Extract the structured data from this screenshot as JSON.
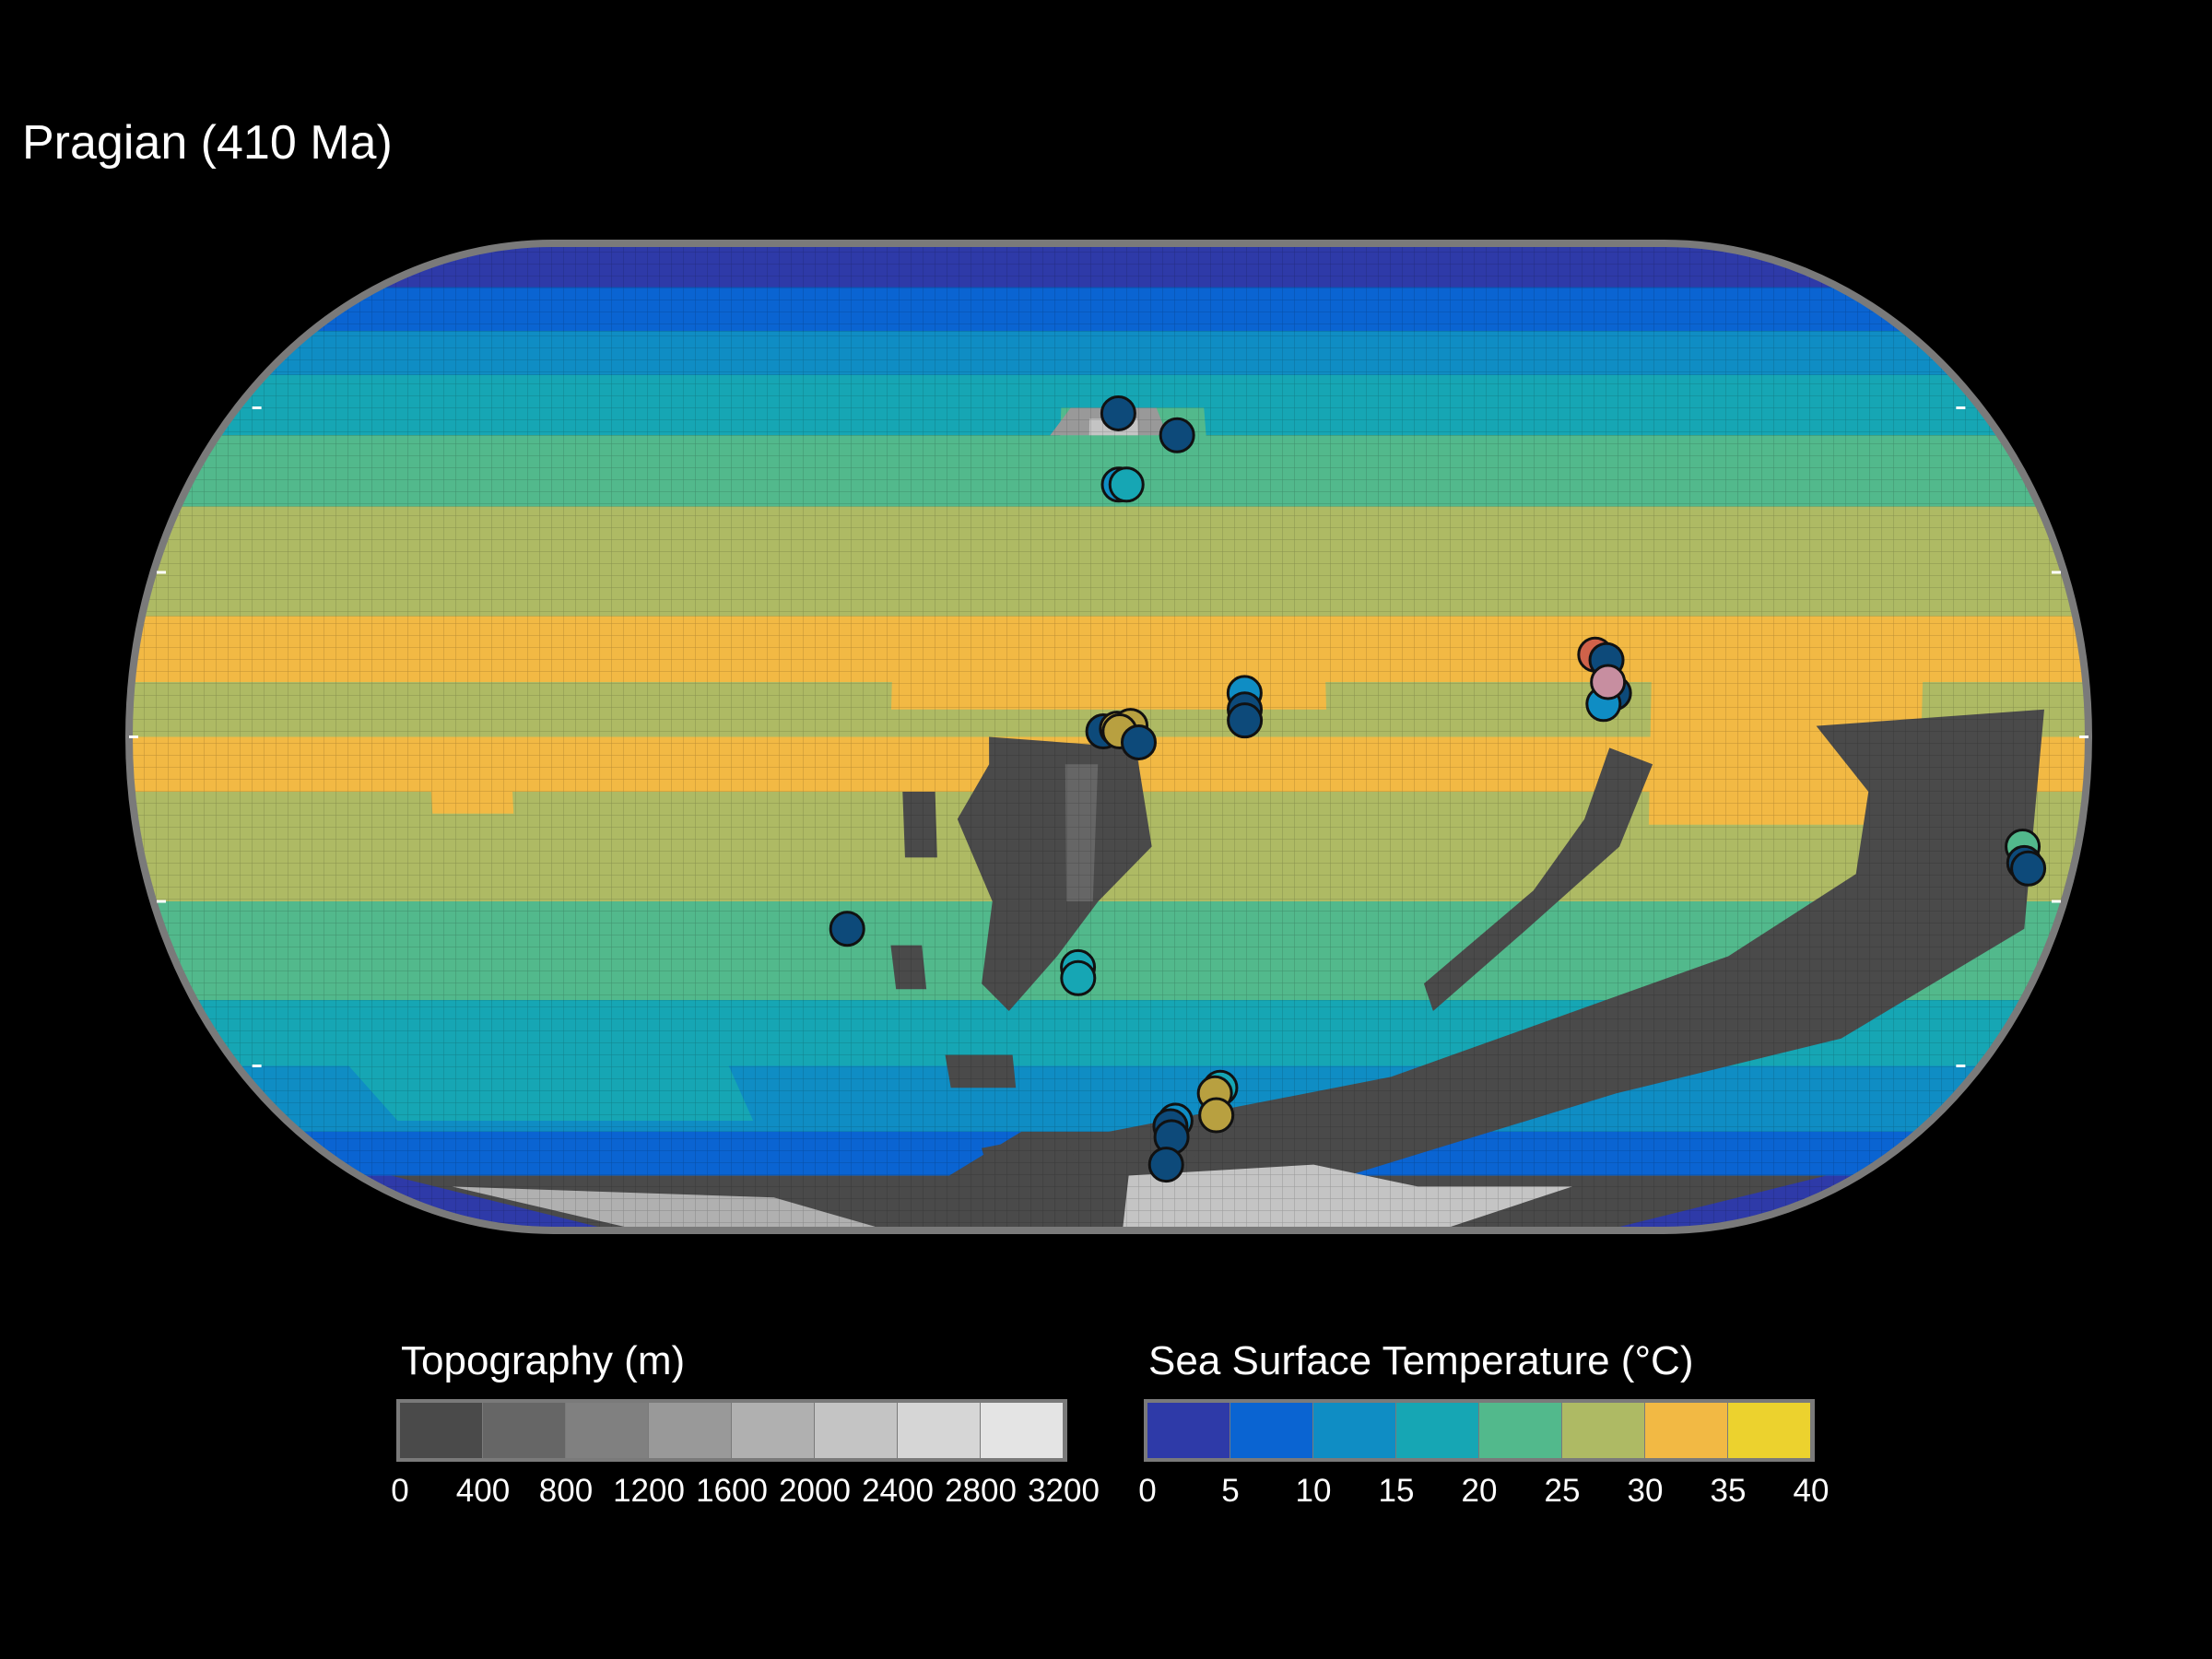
{
  "title": "Pragian (410 Ma)",
  "legend_topography": {
    "title": "Topography (m)",
    "ticks": [
      "0",
      "400",
      "800",
      "1200",
      "1600",
      "2000",
      "2400",
      "2800",
      "3200"
    ],
    "colors": [
      "#4a4a4a",
      "#666666",
      "#808080",
      "#999999",
      "#b0b0b0",
      "#c4c4c4",
      "#d6d6d6",
      "#e4e4e4"
    ]
  },
  "legend_sst": {
    "title": "Sea Surface Temperature (°C)",
    "ticks": [
      "0",
      "5",
      "10",
      "15",
      "20",
      "25",
      "30",
      "35",
      "40"
    ],
    "colors": [
      "#2e3aa8",
      "#0a64d2",
      "#0f8dc4",
      "#16a6b4",
      "#52b98c",
      "#aeba64",
      "#f2b944",
      "#ecd22e"
    ]
  },
  "sites": [
    {
      "lon": 2,
      "lat": 59,
      "temp": 10
    },
    {
      "lon": 2,
      "lat": 46,
      "temp": 14
    },
    {
      "lon": 3.5,
      "lat": 46,
      "temp": 18
    },
    {
      "lon": 14,
      "lat": 55,
      "temp": 8
    },
    {
      "lon": -1,
      "lat": 1,
      "temp": 8
    },
    {
      "lon": 1.5,
      "lat": 1.5,
      "temp": 28
    },
    {
      "lon": 4,
      "lat": 2,
      "temp": 30
    },
    {
      "lon": 2,
      "lat": 1,
      "temp": 27
    },
    {
      "lon": 5.5,
      "lat": -1,
      "temp": 9
    },
    {
      "lon": 25,
      "lat": 8,
      "temp": 12
    },
    {
      "lon": 25,
      "lat": 5,
      "temp": 9
    },
    {
      "lon": 25,
      "lat": 3,
      "temp": 8
    },
    {
      "lon": -50,
      "lat": -35,
      "temp": 8
    },
    {
      "lon": -6,
      "lat": -42,
      "temp": 18
    },
    {
      "lon": -6,
      "lat": -44,
      "temp": 17
    },
    {
      "lon": 24,
      "lat": -64,
      "temp": 17
    },
    {
      "lon": 23,
      "lat": -65,
      "temp": 27
    },
    {
      "lon": 24,
      "lat": -69,
      "temp": 28
    },
    {
      "lon": 15,
      "lat": -70,
      "temp": 14
    },
    {
      "lon": 14,
      "lat": -71,
      "temp": 10
    },
    {
      "lon": 14.5,
      "lat": -73,
      "temp": 8
    },
    {
      "lon": 14,
      "lat": -78,
      "temp": 8
    },
    {
      "lon": 90,
      "lat": 15,
      "temp": 36
    },
    {
      "lon": 92,
      "lat": 14,
      "temp": 8
    },
    {
      "lon": 93,
      "lat": 8,
      "temp": 10
    },
    {
      "lon": 91,
      "lat": 6,
      "temp": 14
    },
    {
      "lon": 92,
      "lat": 10,
      "temp": 38
    },
    {
      "lon": 170,
      "lat": -20,
      "temp": 20
    },
    {
      "lon": 171,
      "lat": -23,
      "temp": 8
    },
    {
      "lon": 172,
      "lat": -24,
      "temp": 9
    }
  ]
}
